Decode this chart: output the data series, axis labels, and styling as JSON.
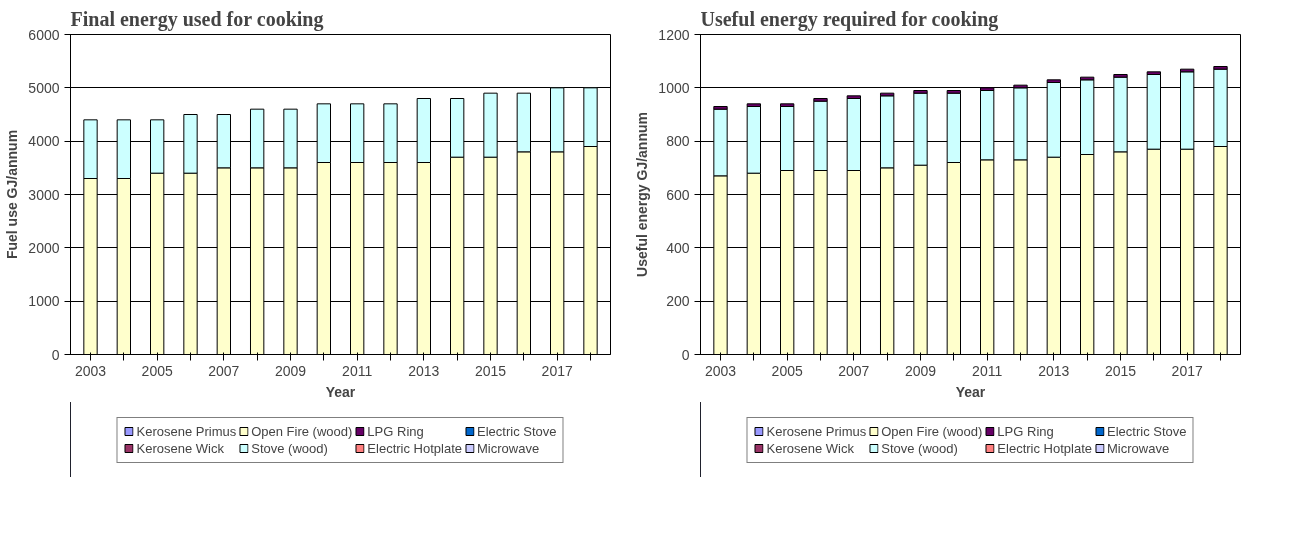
{
  "chart_data": [
    {
      "type": "bar",
      "title": "Final energy used for cooking",
      "xlabel": "Year",
      "ylabel": "Fuel use GJ/annum",
      "stacked": true,
      "categories": [
        "2003",
        null,
        "2005",
        null,
        "2007",
        null,
        "2009",
        null,
        "2011",
        null,
        "2013",
        null,
        "2015",
        null,
        "2017",
        null
      ],
      "series": [
        {
          "name": "Kerosene Primus",
          "color": "#9999ff",
          "values": [
            null,
            null,
            null,
            null,
            null,
            null,
            null,
            null,
            null,
            null,
            null,
            null,
            null,
            null,
            null,
            null
          ]
        },
        {
          "name": "Kerosene Wick",
          "color": "#993366",
          "values": [
            null,
            null,
            null,
            null,
            null,
            null,
            null,
            null,
            null,
            null,
            null,
            null,
            null,
            null,
            null,
            null
          ]
        },
        {
          "name": "Open Fire (wood)",
          "color": "#ffffcc",
          "values": [
            3300,
            3300,
            3400,
            3400,
            3500,
            3500,
            3500,
            3600,
            3600,
            3600,
            3600,
            3700,
            3700,
            3800,
            3800,
            3900
          ]
        },
        {
          "name": "Stove (wood)",
          "color": "#ccffff",
          "values": [
            1100,
            1100,
            1000,
            1100,
            1000,
            1100,
            1100,
            1100,
            1100,
            1100,
            1200,
            1100,
            1200,
            1100,
            1200,
            1100
          ]
        },
        {
          "name": "LPG Ring",
          "color": "#660066",
          "values": [
            null,
            null,
            null,
            null,
            null,
            null,
            null,
            null,
            null,
            null,
            null,
            null,
            null,
            null,
            null,
            null
          ]
        },
        {
          "name": "Electric Hotplate",
          "color": "#ff8080",
          "values": [
            null,
            null,
            null,
            null,
            null,
            null,
            null,
            null,
            null,
            null,
            null,
            null,
            null,
            null,
            null,
            null
          ]
        },
        {
          "name": "Electric Stove",
          "color": "#0066cc",
          "values": [
            null,
            null,
            null,
            null,
            null,
            null,
            null,
            null,
            null,
            null,
            null,
            null,
            null,
            null,
            null,
            null
          ]
        },
        {
          "name": "Microwave",
          "color": "#ccccff",
          "values": [
            null,
            null,
            null,
            null,
            null,
            null,
            null,
            null,
            null,
            null,
            null,
            null,
            null,
            null,
            null,
            null
          ]
        }
      ],
      "ylim": [
        0,
        6000
      ],
      "yticks": [
        0,
        1000,
        2000,
        3000,
        4000,
        5000,
        6000
      ],
      "grid": "y",
      "legend": "bottom"
    },
    {
      "type": "bar",
      "title": "Useful energy required for cooking",
      "xlabel": "Year",
      "ylabel": "Useful energy GJ/annum",
      "stacked": true,
      "categories": [
        "2003",
        null,
        "2005",
        null,
        "2007",
        null,
        "2009",
        null,
        "2011",
        null,
        "2013",
        null,
        "2015",
        null,
        "2017",
        null
      ],
      "series": [
        {
          "name": "Kerosene Primus",
          "color": "#9999ff",
          "values": [
            null,
            null,
            null,
            null,
            null,
            null,
            null,
            null,
            null,
            null,
            null,
            null,
            null,
            null,
            null,
            null
          ]
        },
        {
          "name": "Kerosene Wick",
          "color": "#993366",
          "values": [
            null,
            null,
            null,
            null,
            null,
            null,
            null,
            null,
            null,
            null,
            null,
            null,
            null,
            null,
            null,
            null
          ]
        },
        {
          "name": "Open Fire (wood)",
          "color": "#ffffcc",
          "values": [
            670,
            680,
            690,
            690,
            690,
            700,
            710,
            720,
            730,
            730,
            740,
            750,
            760,
            770,
            770,
            780
          ]
        },
        {
          "name": "Stove (wood)",
          "color": "#ccffff",
          "values": [
            250,
            250,
            240,
            260,
            270,
            270,
            270,
            260,
            260,
            270,
            280,
            280,
            280,
            280,
            290,
            290
          ]
        },
        {
          "name": "LPG Ring",
          "color": "#660066",
          "values": [
            10,
            10,
            10,
            10,
            10,
            10,
            10,
            10,
            10,
            10,
            10,
            10,
            10,
            10,
            10,
            10
          ]
        },
        {
          "name": "Electric Hotplate",
          "color": "#ff8080",
          "values": [
            null,
            null,
            null,
            null,
            null,
            null,
            null,
            null,
            null,
            null,
            null,
            null,
            null,
            null,
            null,
            null
          ]
        },
        {
          "name": "Electric Stove",
          "color": "#0066cc",
          "values": [
            null,
            null,
            null,
            null,
            null,
            null,
            null,
            null,
            null,
            null,
            null,
            null,
            null,
            null,
            null,
            null
          ]
        },
        {
          "name": "Microwave",
          "color": "#ccccff",
          "values": [
            null,
            null,
            null,
            null,
            null,
            null,
            null,
            null,
            null,
            null,
            null,
            null,
            null,
            null,
            null,
            null
          ]
        }
      ],
      "ylim": [
        0,
        1200
      ],
      "yticks": [
        0,
        200,
        400,
        600,
        800,
        1000,
        1200
      ],
      "grid": "y",
      "legend": "bottom"
    }
  ]
}
